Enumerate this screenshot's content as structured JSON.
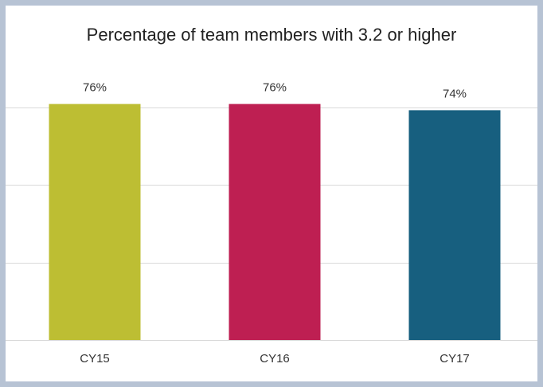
{
  "chart_data": {
    "type": "bar",
    "title": "Percentage of team members with 3.2 or higher",
    "categories": [
      "CY15",
      "CY16",
      "CY17"
    ],
    "values": [
      76,
      76,
      74
    ],
    "value_labels": [
      "76%",
      "76%",
      "74%"
    ],
    "colors": [
      "#bdbe33",
      "#be1f52",
      "#175f7f"
    ],
    "ylim": [
      0,
      80
    ],
    "yticks": [
      0,
      25,
      50,
      75
    ],
    "grid": true
  }
}
